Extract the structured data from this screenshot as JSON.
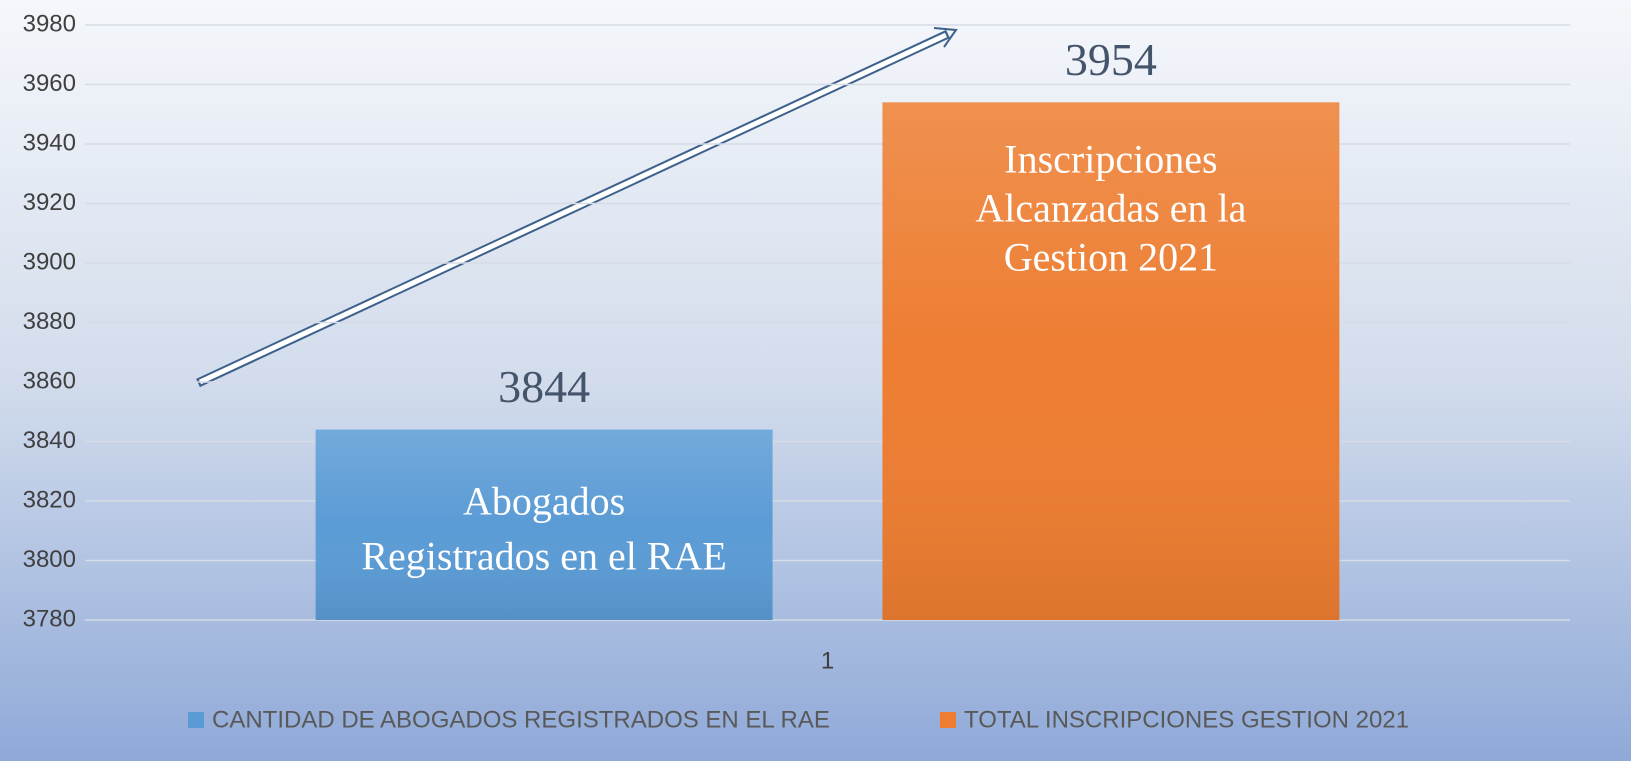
{
  "chart_data": {
    "type": "bar",
    "categories": [
      "1"
    ],
    "series": [
      {
        "name": "CANTIDAD DE ABOGADOS REGISTRADOS EN EL RAE",
        "color": "#5b9bd5",
        "values": [
          3844
        ]
      },
      {
        "name": "TOTAL INSCRIPCIONES GESTION 2021",
        "color": "#ed7d31",
        "values": [
          3954
        ]
      }
    ],
    "annotations": [
      [
        "Abogados",
        "Registrados en el RAE"
      ],
      [
        "Inscripciones",
        "Alcanzadas en la",
        "Gestion 2021"
      ]
    ],
    "ylim": [
      3780,
      3980
    ],
    "yticks": [
      3780,
      3800,
      3820,
      3840,
      3860,
      3880,
      3900,
      3920,
      3940,
      3960,
      3980
    ],
    "grid": true,
    "legend": "bottom"
  }
}
